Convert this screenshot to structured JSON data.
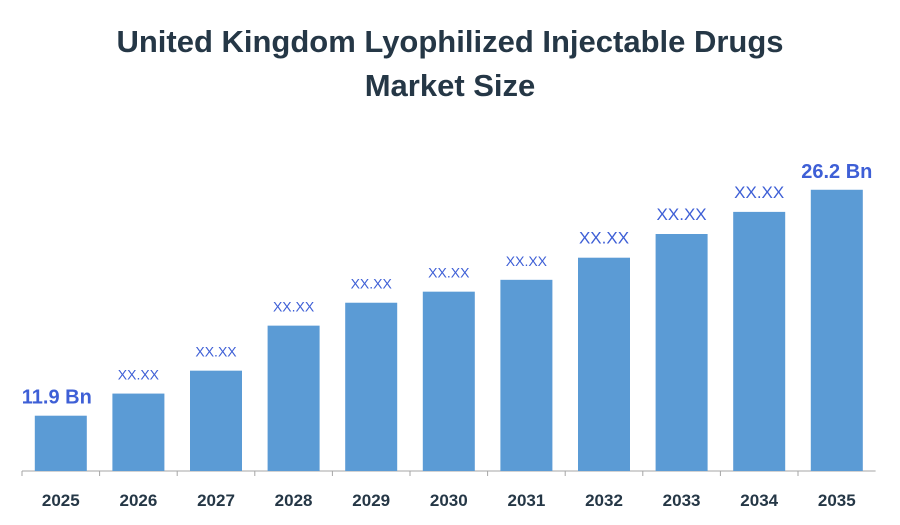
{
  "chart_data": {
    "type": "bar",
    "title_line1": "United Kingdom Lyophilized Injectable Drugs",
    "title_line2": "Market Size",
    "categories": [
      "2025",
      "2026",
      "2027",
      "2028",
      "2029",
      "2030",
      "2031",
      "2032",
      "2033",
      "2034",
      "2035"
    ],
    "values": [
      11.9,
      13.3,
      14.75,
      17.6,
      19.05,
      19.75,
      20.5,
      21.9,
      23.4,
      24.8,
      26.2
    ],
    "data_labels": [
      "11.9 Bn",
      "XX.XX",
      "XX.XX",
      "XX.XX",
      "XX.XX",
      "XX.XX",
      "XX.XX",
      "XX.XX",
      "XX.XX",
      "XX.XX",
      "26.2 Bn"
    ],
    "xlabel": "",
    "ylabel": "",
    "ylim": [
      8.4,
      28
    ],
    "grid": false,
    "colors": {
      "bar": "#5b9bd5",
      "label": "#3e5fd6",
      "title": "#253746",
      "axis": "#a6a6a6"
    }
  }
}
